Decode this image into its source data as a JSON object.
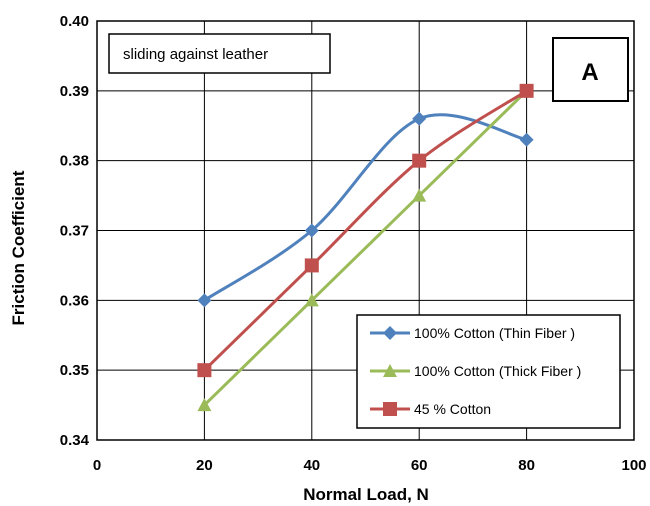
{
  "chart_data": {
    "type": "line",
    "xlabel": "Normal Load, N",
    "ylabel": "Friction Coefficient",
    "xlim": [
      0,
      100
    ],
    "ylim": [
      0.34,
      0.4
    ],
    "x_ticks": [
      "0",
      "20",
      "40",
      "60",
      "80",
      "100"
    ],
    "y_ticks": [
      "0.34",
      "0.35",
      "0.36",
      "0.37",
      "0.38",
      "0.39",
      "0.40"
    ],
    "annotation": "sliding against leather",
    "panel_label": "A",
    "grid": "horizontal and vertical",
    "legend_position": "bottom-right",
    "series": [
      {
        "name": "100% Cotton (Thin Fiber )",
        "color": "#4F81BD",
        "marker": "diamond",
        "smooth": true,
        "x": [
          20,
          40,
          60,
          80
        ],
        "values": [
          0.36,
          0.37,
          0.386,
          0.383
        ]
      },
      {
        "name": "100% Cotton (Thick Fiber )",
        "color": "#9BBB59",
        "marker": "triangle",
        "smooth": false,
        "x": [
          20,
          40,
          60,
          80
        ],
        "values": [
          0.345,
          0.36,
          0.375,
          0.39
        ]
      },
      {
        "name": "45 % Cotton",
        "color": "#C0504D",
        "marker": "square",
        "smooth": true,
        "x": [
          20,
          40,
          60,
          80
        ],
        "values": [
          0.35,
          0.365,
          0.38,
          0.39
        ]
      }
    ]
  }
}
